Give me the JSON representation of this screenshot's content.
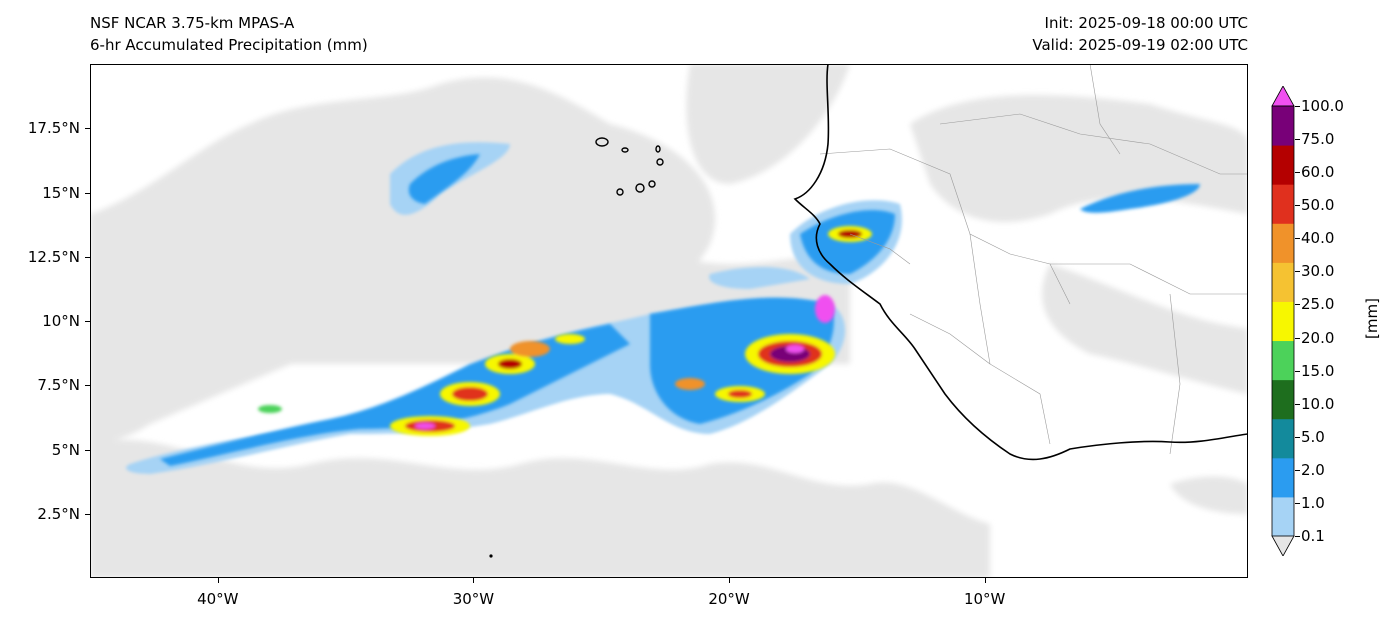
{
  "title": {
    "model": "NSF NCAR 3.75-km MPAS-A",
    "field": "6-hr Accumulated Precipitation (mm)",
    "init": "Init: 2025-09-18 00:00 UTC",
    "valid": "Valid: 2025-09-19 02:00 UTC"
  },
  "map": {
    "lon_range": [
      -45,
      0.3
    ],
    "lat_range": [
      0,
      20
    ],
    "y_ticks": [
      "17.5°N",
      "15°N",
      "12.5°N",
      "10°N",
      "7.5°N",
      "5°N",
      "2.5°N"
    ],
    "y_tick_values": [
      17.5,
      15,
      12.5,
      10,
      7.5,
      5,
      2.5
    ],
    "x_ticks": [
      "40°W",
      "30°W",
      "20°W",
      "10°W"
    ],
    "x_tick_values": [
      -40,
      -30,
      -20,
      -10
    ],
    "ocean_color": "#ffffff",
    "coastline_color": "#000000",
    "border_color": "#9a9a9a"
  },
  "colorbar": {
    "unit_label": "[mm]",
    "levels": [
      "0.1",
      "1.0",
      "2.0",
      "5.0",
      "10.0",
      "15.0",
      "20.0",
      "25.0",
      "30.0",
      "40.0",
      "50.0",
      "60.0",
      "75.0",
      "100.0"
    ],
    "colors": [
      "#e6e6e6",
      "#a6d3f5",
      "#2b9cf0",
      "#138a9c",
      "#1e6e1e",
      "#4cd25a",
      "#f7f700",
      "#f5c232",
      "#f0922a",
      "#e0301e",
      "#b40000",
      "#780078",
      "#f050f0"
    ]
  }
}
